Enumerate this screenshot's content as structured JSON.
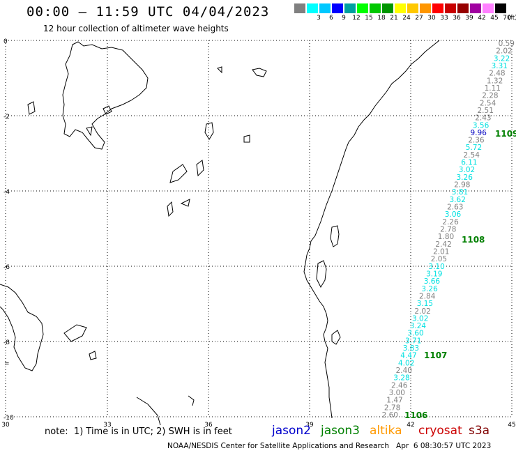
{
  "header": {
    "title": "00:00 – 11:59 UTC 04/04/2023",
    "subtitle": "12 hour collection of altimeter wave heights"
  },
  "color_scale": {
    "unit": "(ft)",
    "bins": [
      {
        "label": "",
        "color": "#808080"
      },
      {
        "label": "3",
        "color": "#00ffff"
      },
      {
        "label": "6",
        "color": "#00c8ff"
      },
      {
        "label": "9",
        "color": "#0000ff"
      },
      {
        "label": "12",
        "color": "#00a0a0"
      },
      {
        "label": "15",
        "color": "#00ff00"
      },
      {
        "label": "18",
        "color": "#00c800"
      },
      {
        "label": "21",
        "color": "#009600"
      },
      {
        "label": "24",
        "color": "#ffff00"
      },
      {
        "label": "27",
        "color": "#ffc800"
      },
      {
        "label": "30",
        "color": "#ff9600"
      },
      {
        "label": "33",
        "color": "#ff0000"
      },
      {
        "label": "36",
        "color": "#c80000"
      },
      {
        "label": "39",
        "color": "#960000"
      },
      {
        "label": "42",
        "color": "#a000a0"
      },
      {
        "label": "45",
        "color": "#ff80ff"
      },
      {
        "label": "70",
        "color": "#000000"
      }
    ]
  },
  "axes": {
    "lon_labels": [
      "30",
      "33",
      "36",
      "39",
      "42",
      "45"
    ],
    "lat_labels": [
      "0",
      "-2",
      "-4",
      "-6",
      "-8",
      "-10"
    ],
    "lat_extra_marks": [
      "="
    ]
  },
  "track": {
    "colors": {
      "gray": "#808080",
      "cyan": "#00e0e0",
      "blue": "#0000c0",
      "green": "#008000"
    },
    "readings": [
      {
        "v": "0.59",
        "c": "gray"
      },
      {
        "v": "2.02",
        "c": "gray"
      },
      {
        "v": "3.22",
        "c": "cyan"
      },
      {
        "v": "3.31",
        "c": "cyan"
      },
      {
        "v": "2.48",
        "c": "gray"
      },
      {
        "v": "1.32",
        "c": "gray"
      },
      {
        "v": "1.11",
        "c": "gray"
      },
      {
        "v": "2.28",
        "c": "gray"
      },
      {
        "v": "2.54",
        "c": "gray"
      },
      {
        "v": "2.51",
        "c": "gray"
      },
      {
        "v": "2.43",
        "c": "gray"
      },
      {
        "v": "3.56",
        "c": "cyan"
      },
      {
        "v": "9.96",
        "c": "blue"
      },
      {
        "v": "2.36",
        "c": "gray"
      },
      {
        "v": "5.72",
        "c": "cyan"
      },
      {
        "v": "2.54",
        "c": "gray"
      },
      {
        "v": "6.11",
        "c": "cyan"
      },
      {
        "v": "3.02",
        "c": "cyan"
      },
      {
        "v": "3.26",
        "c": "cyan"
      },
      {
        "v": "2.98",
        "c": "gray"
      },
      {
        "v": "3.81",
        "c": "cyan"
      },
      {
        "v": "3.62",
        "c": "cyan"
      },
      {
        "v": "2.63",
        "c": "gray"
      },
      {
        "v": "3.06",
        "c": "cyan"
      },
      {
        "v": "2.26",
        "c": "gray"
      },
      {
        "v": "2.78",
        "c": "gray"
      },
      {
        "v": "1.80",
        "c": "gray"
      },
      {
        "v": "2.42",
        "c": "gray"
      },
      {
        "v": "2.01",
        "c": "gray"
      },
      {
        "v": "2.05",
        "c": "gray"
      },
      {
        "v": "3.10",
        "c": "cyan"
      },
      {
        "v": "3.19",
        "c": "cyan"
      },
      {
        "v": "3.66",
        "c": "cyan"
      },
      {
        "v": "3.26",
        "c": "cyan"
      },
      {
        "v": "2.84",
        "c": "gray"
      },
      {
        "v": "3.15",
        "c": "cyan"
      },
      {
        "v": "2.02",
        "c": "gray"
      },
      {
        "v": "3.02",
        "c": "cyan"
      },
      {
        "v": "3.24",
        "c": "cyan"
      },
      {
        "v": "3.60",
        "c": "cyan"
      },
      {
        "v": "3.71",
        "c": "cyan"
      },
      {
        "v": "3.83",
        "c": "cyan"
      },
      {
        "v": "4.47",
        "c": "cyan"
      },
      {
        "v": "4.02",
        "c": "cyan"
      },
      {
        "v": "2.40",
        "c": "gray"
      },
      {
        "v": "3.28",
        "c": "cyan"
      },
      {
        "v": "2.46",
        "c": "gray"
      },
      {
        "v": "3.00",
        "c": "gray"
      },
      {
        "v": "1.47",
        "c": "gray"
      },
      {
        "v": "2.78",
        "c": "gray"
      },
      {
        "v": "2.60",
        "c": "gray"
      }
    ],
    "time_labels": [
      "1109",
      "1108",
      "1107",
      "1106"
    ]
  },
  "note": {
    "text": "note:  1) Time is in UTC; 2) SWH is in feet"
  },
  "missions": [
    {
      "name": "jason2",
      "color": "#0000cc"
    },
    {
      "name": "jason3",
      "color": "#008000"
    },
    {
      "name": "altika",
      "color": "#ff9900"
    },
    {
      "name": "cryosat",
      "color": "#cc0000"
    },
    {
      "name": "s3a",
      "color": "#800000"
    }
  ],
  "footer": {
    "credit": "NOAA/NESDIS Center for Satellite Applications and Research",
    "generated": "Apr  6 08:30:57 UTC 2023"
  }
}
